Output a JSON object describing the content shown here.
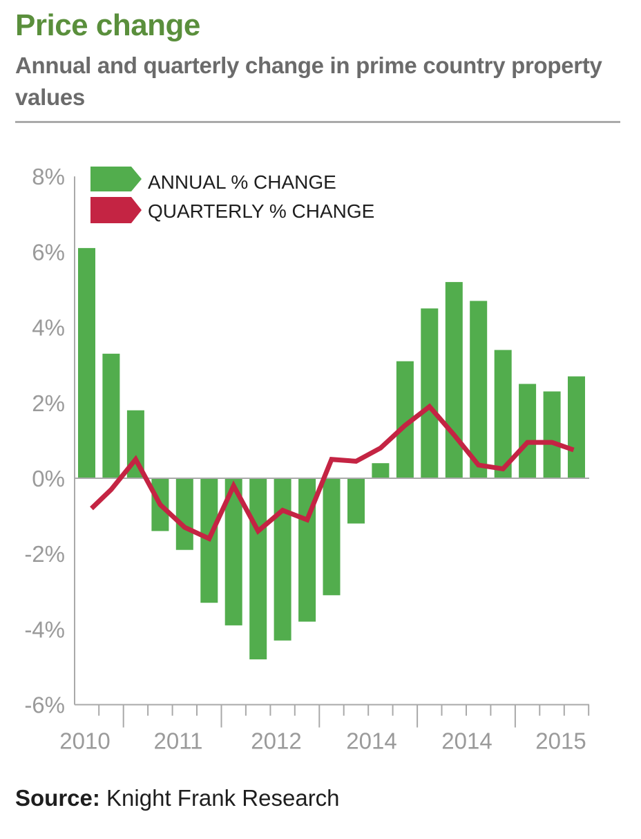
{
  "header": {
    "title": "Price change",
    "subtitle": "Annual and quarterly change in prime country property values"
  },
  "source": {
    "label": "Source:",
    "text": "Knight Frank Research"
  },
  "colors": {
    "title": "#5a8f3c",
    "annual": "#52ad4d",
    "quarterly": "#c42443",
    "axis": "#a9a9a9",
    "tick_text": "#9a9a9a"
  },
  "chart_data": {
    "type": "bar",
    "title": "Price change",
    "subtitle": "Annual and quarterly change in prime country property values",
    "xlabel": "",
    "ylabel": "",
    "ylim": [
      -6,
      8
    ],
    "yticks": [
      8,
      6,
      4,
      2,
      0,
      -2,
      -4,
      -6
    ],
    "ytick_labels": [
      "8%",
      "6%",
      "4%",
      "2%",
      "0%",
      "-2%",
      "-4%",
      "-6%"
    ],
    "x_year_labels": [
      "2010",
      "2011",
      "2012",
      "2014",
      "2014",
      "2015"
    ],
    "grid": false,
    "legend_position": "top-left",
    "legend": [
      {
        "name": "ANNUAL % CHANGE",
        "mark": "bar"
      },
      {
        "name": "QUARTERLY % CHANGE",
        "mark": "line"
      }
    ],
    "series": [
      {
        "name": "ANNUAL % CHANGE",
        "type": "bar",
        "values": [
          6.1,
          3.3,
          1.8,
          -1.4,
          -1.9,
          -3.3,
          -3.9,
          -4.8,
          -4.3,
          -3.8,
          -3.1,
          -1.2,
          0.4,
          3.1,
          4.5,
          5.2,
          4.7,
          3.4,
          2.5,
          2.3,
          2.7
        ]
      },
      {
        "name": "QUARTERLY % CHANGE",
        "type": "line",
        "values": [
          -0.8,
          -0.3,
          0.5,
          -0.7,
          -1.3,
          -1.6,
          -0.2,
          -1.4,
          -0.85,
          -1.1,
          0.5,
          0.45,
          0.8,
          1.4,
          1.9,
          1.15,
          0.35,
          0.25,
          0.95,
          0.95,
          0.75
        ]
      }
    ]
  }
}
